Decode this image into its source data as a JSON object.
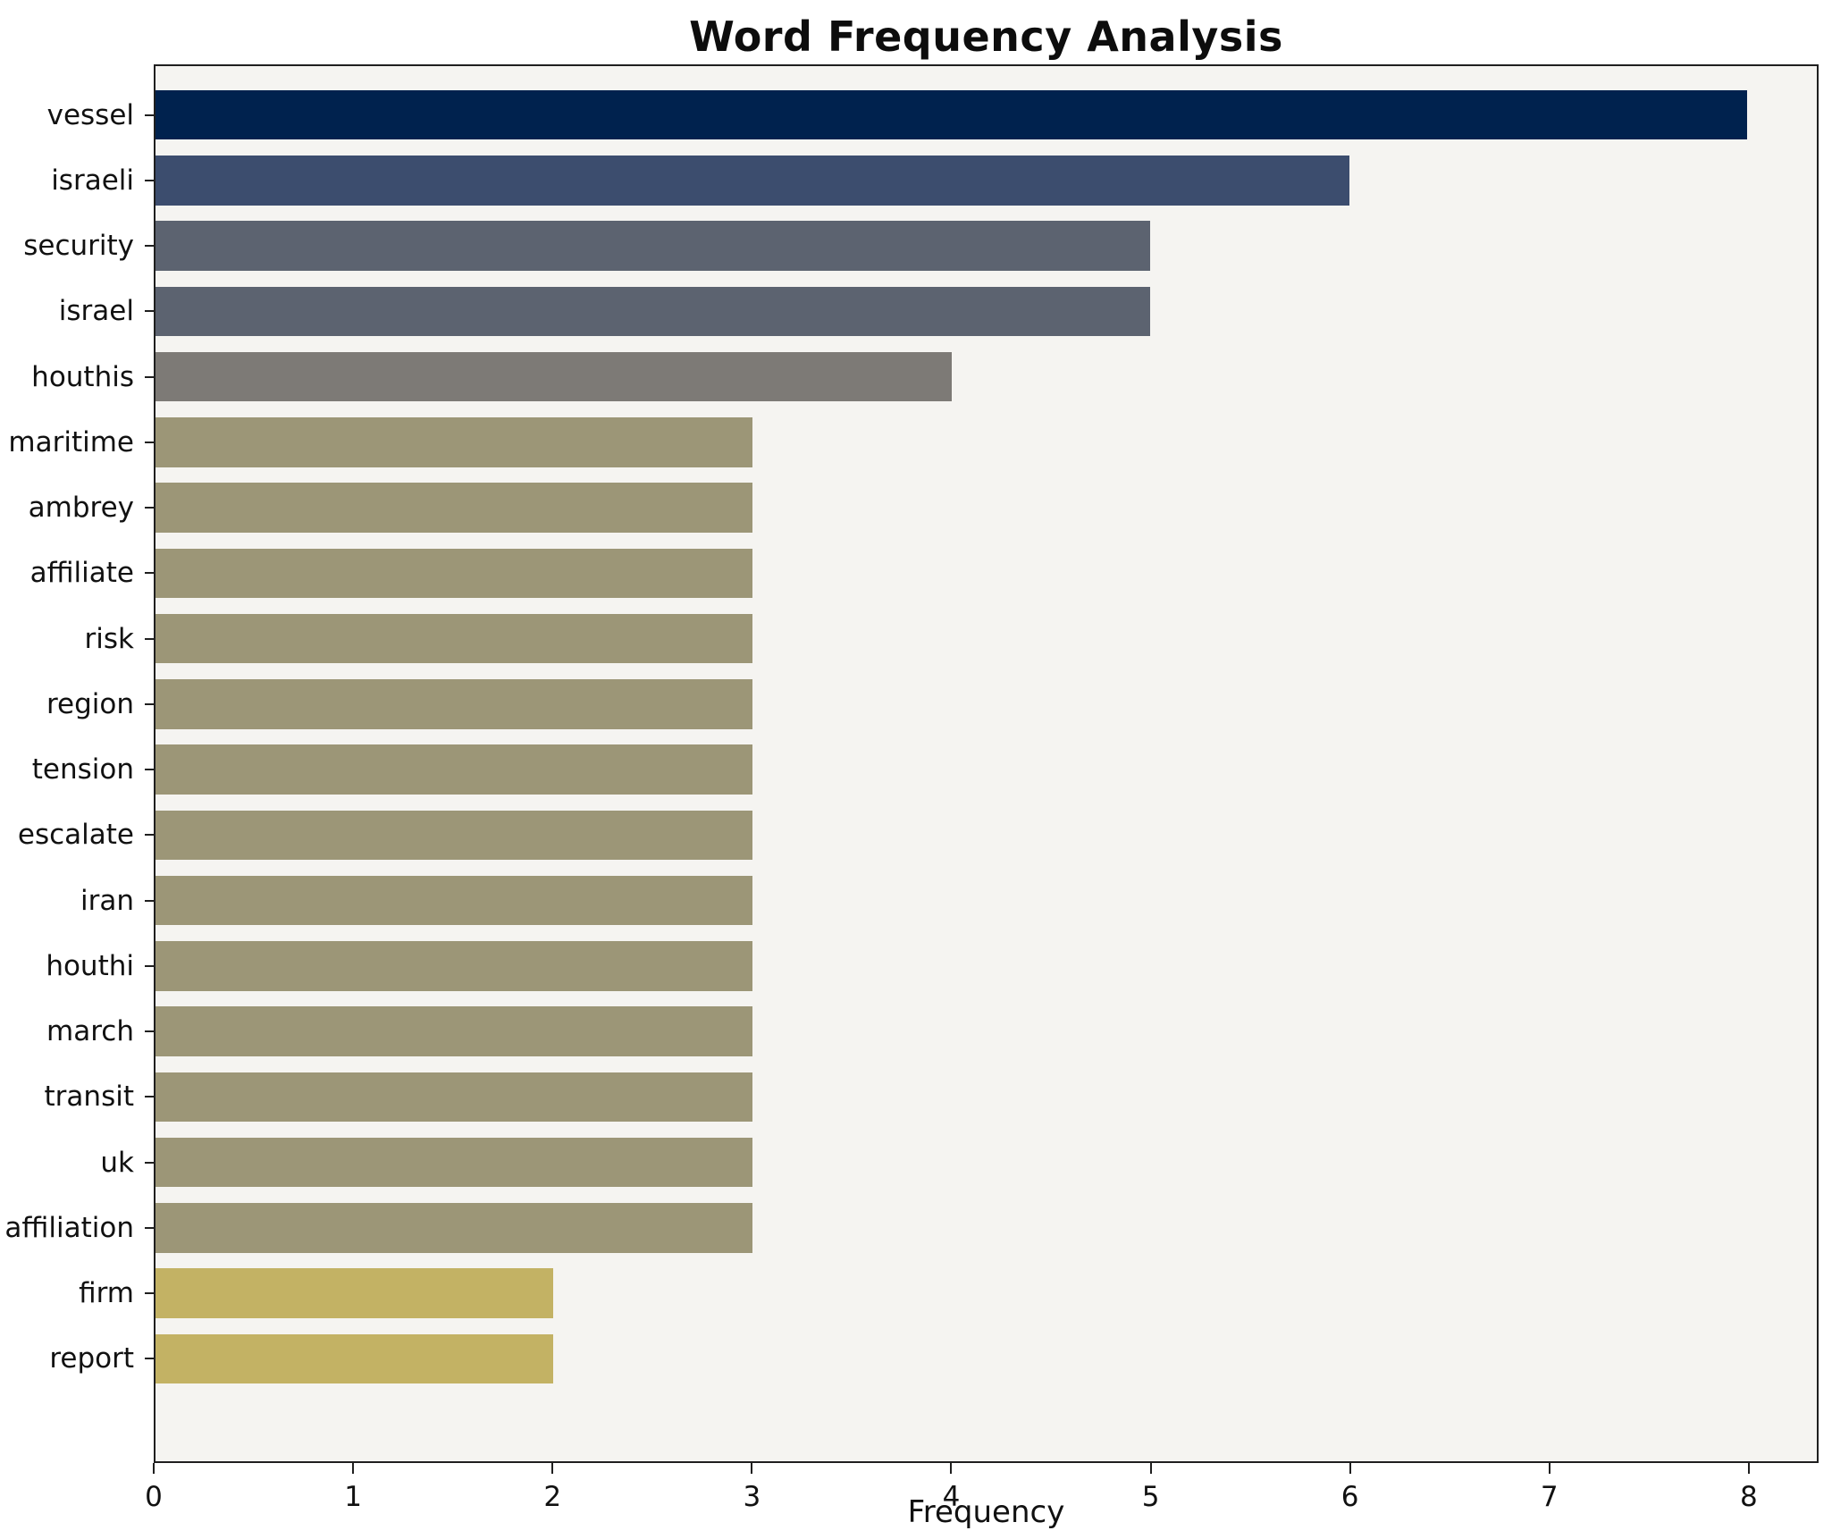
{
  "chart_data": {
    "type": "bar",
    "orientation": "horizontal",
    "title": "Word Frequency Analysis",
    "xlabel": "Frequency",
    "ylabel": "",
    "categories": [
      "vessel",
      "israeli",
      "security",
      "israel",
      "houthis",
      "maritime",
      "ambrey",
      "affiliate",
      "risk",
      "region",
      "tension",
      "escalate",
      "iran",
      "houthi",
      "march",
      "transit",
      "uk",
      "affiliation",
      "firm",
      "report"
    ],
    "values": [
      8,
      6,
      5,
      5,
      4,
      3,
      3,
      3,
      3,
      3,
      3,
      3,
      3,
      3,
      3,
      3,
      3,
      3,
      2,
      2
    ],
    "colors": [
      "#00224e",
      "#3c4d6e",
      "#5c6370",
      "#5c6370",
      "#7d7a76",
      "#9c9677",
      "#9c9677",
      "#9c9677",
      "#9c9677",
      "#9c9677",
      "#9c9677",
      "#9c9677",
      "#9c9677",
      "#9c9677",
      "#9c9677",
      "#9c9677",
      "#9c9677",
      "#9c9677",
      "#c3b264",
      "#c3b264"
    ],
    "xlim": [
      0,
      8.35
    ],
    "xticks": [
      0,
      1,
      2,
      3,
      4,
      5,
      6,
      7,
      8
    ],
    "grid": false,
    "legend": "none",
    "plot_background": "#f5f4f1",
    "axis_color": "#1f1f1f"
  }
}
